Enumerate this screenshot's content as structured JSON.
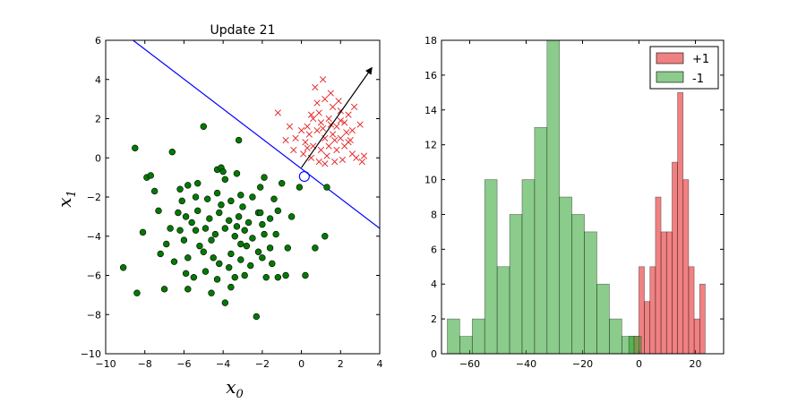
{
  "chart_data": [
    {
      "type": "scatter",
      "title": "Update 21",
      "xlabel": "x",
      "xlabel_sub": "0",
      "ylabel": "x",
      "ylabel_sub": "1",
      "xlim": [
        -10,
        4
      ],
      "ylim": [
        -10,
        6
      ],
      "xticks": [
        -10,
        -8,
        -6,
        -4,
        -2,
        0,
        2,
        4
      ],
      "yticks": [
        -10,
        -8,
        -6,
        -4,
        -2,
        0,
        2,
        4,
        6
      ],
      "grid": false,
      "colors": {
        "positive": "#e31a1c",
        "negative": "#007a00",
        "boundary": "#0000ff",
        "arrow": "#000000",
        "highlight": "#0000ff"
      },
      "decision_line": {
        "x": [
          -8.6,
          4.0
        ],
        "y": [
          6.0,
          -3.6
        ]
      },
      "weight_arrow": {
        "from": [
          0.0,
          -0.5
        ],
        "to": [
          3.6,
          4.6
        ]
      },
      "highlighted_point": [
        0.15,
        -0.95
      ],
      "series": [
        {
          "marker": "x",
          "points": [
            [
              0.5,
              2.2
            ],
            [
              0.8,
              2.8
            ],
            [
              1.2,
              3.0
            ],
            [
              1.6,
              2.6
            ],
            [
              2.0,
              2.4
            ],
            [
              2.4,
              2.2
            ],
            [
              1.0,
              1.8
            ],
            [
              1.4,
              2.0
            ],
            [
              1.8,
              1.6
            ],
            [
              2.2,
              1.8
            ],
            [
              2.6,
              1.4
            ],
            [
              0.4,
              1.2
            ],
            [
              0.8,
              1.4
            ],
            [
              1.2,
              1.0
            ],
            [
              1.6,
              1.2
            ],
            [
              2.0,
              1.0
            ],
            [
              2.4,
              0.8
            ],
            [
              0.2,
              0.8
            ],
            [
              0.6,
              0.6
            ],
            [
              1.0,
              0.4
            ],
            [
              1.4,
              0.6
            ],
            [
              1.8,
              0.4
            ],
            [
              2.2,
              0.6
            ],
            [
              2.6,
              0.2
            ],
            [
              0.1,
              0.2
            ],
            [
              0.5,
              0.0
            ],
            [
              0.9,
              -0.2
            ],
            [
              1.3,
              0.1
            ],
            [
              1.7,
              -0.2
            ],
            [
              2.1,
              -0.1
            ],
            [
              2.8,
              0.0
            ],
            [
              3.1,
              -0.2
            ],
            [
              0.7,
              3.6
            ],
            [
              1.1,
              4.0
            ],
            [
              1.5,
              3.3
            ],
            [
              2.7,
              2.6
            ],
            [
              3.0,
              1.7
            ],
            [
              -1.2,
              2.3
            ],
            [
              -0.6,
              1.6
            ],
            [
              -0.3,
              1.0
            ],
            [
              -0.8,
              0.9
            ],
            [
              -0.4,
              0.4
            ],
            [
              0.3,
              1.6
            ],
            [
              1.9,
              2.9
            ],
            [
              2.3,
              1.3
            ],
            [
              1.5,
              1.7
            ],
            [
              0.9,
              2.3
            ],
            [
              2.5,
              0.9
            ],
            [
              0.0,
              1.4
            ],
            [
              0.6,
              2.0
            ],
            [
              1.1,
              1.5
            ],
            [
              1.7,
              0.9
            ],
            [
              2.0,
              1.9
            ],
            [
              0.3,
              0.5
            ],
            [
              1.2,
              -0.3
            ],
            [
              3.2,
              0.1
            ]
          ]
        },
        {
          "marker": "o",
          "points": [
            [
              -8.5,
              0.5
            ],
            [
              -7.9,
              -1.0
            ],
            [
              -7.7,
              -0.9
            ],
            [
              -6.6,
              0.3
            ],
            [
              -5.0,
              1.6
            ],
            [
              -3.2,
              0.9
            ],
            [
              -4.3,
              -0.6
            ],
            [
              -4.1,
              -0.5
            ],
            [
              -3.3,
              -0.8
            ],
            [
              -1.9,
              -1.0
            ],
            [
              -0.1,
              -1.5
            ],
            [
              1.3,
              -1.5
            ],
            [
              -7.5,
              -1.7
            ],
            [
              -6.2,
              -1.6
            ],
            [
              -5.8,
              -1.4
            ],
            [
              -5.4,
              -2.0
            ],
            [
              -4.8,
              -2.1
            ],
            [
              -4.3,
              -1.8
            ],
            [
              -3.6,
              -2.2
            ],
            [
              -3.1,
              -1.9
            ],
            [
              -2.5,
              -2.0
            ],
            [
              -2.1,
              -1.5
            ],
            [
              -1.4,
              -2.1
            ],
            [
              -7.3,
              -2.7
            ],
            [
              -6.3,
              -2.8
            ],
            [
              -5.9,
              -3.0
            ],
            [
              -5.3,
              -2.7
            ],
            [
              -4.7,
              -3.1
            ],
            [
              -4.2,
              -2.8
            ],
            [
              -3.7,
              -3.2
            ],
            [
              -3.2,
              -3.0
            ],
            [
              -2.7,
              -3.3
            ],
            [
              -2.2,
              -2.8
            ],
            [
              -1.6,
              -3.1
            ],
            [
              -1.2,
              -2.7
            ],
            [
              -8.1,
              -3.8
            ],
            [
              -6.7,
              -3.6
            ],
            [
              -6.2,
              -3.7
            ],
            [
              -5.4,
              -3.7
            ],
            [
              -4.9,
              -3.6
            ],
            [
              -4.4,
              -3.9
            ],
            [
              -3.9,
              -3.6
            ],
            [
              -3.4,
              -4.0
            ],
            [
              -2.9,
              -3.7
            ],
            [
              -2.5,
              -4.1
            ],
            [
              -1.9,
              -3.9
            ],
            [
              -1.3,
              -3.9
            ],
            [
              -0.7,
              -4.6
            ],
            [
              1.2,
              -4.0
            ],
            [
              -7.2,
              -4.9
            ],
            [
              -6.5,
              -5.3
            ],
            [
              -5.8,
              -5.1
            ],
            [
              -5.0,
              -4.8
            ],
            [
              -4.5,
              -5.1
            ],
            [
              -4.2,
              -5.4
            ],
            [
              -3.6,
              -4.9
            ],
            [
              -3.1,
              -5.2
            ],
            [
              -2.6,
              -5.5
            ],
            [
              -2.0,
              -5.1
            ],
            [
              -1.5,
              -5.4
            ],
            [
              -9.1,
              -5.6
            ],
            [
              -5.9,
              -5.9
            ],
            [
              -5.5,
              -6.1
            ],
            [
              -4.9,
              -5.8
            ],
            [
              -4.3,
              -6.2
            ],
            [
              -3.4,
              -6.1
            ],
            [
              -2.9,
              -6.0
            ],
            [
              -1.8,
              -6.1
            ],
            [
              -0.8,
              -6.0
            ],
            [
              0.2,
              -6.0
            ],
            [
              -8.4,
              -6.9
            ],
            [
              -7.0,
              -6.7
            ],
            [
              -5.8,
              -6.7
            ],
            [
              -4.6,
              -6.9
            ],
            [
              -3.6,
              -6.6
            ],
            [
              -3.9,
              -7.4
            ],
            [
              -2.3,
              -8.1
            ],
            [
              -2.1,
              -2.8
            ],
            [
              -6.1,
              -2.2
            ],
            [
              -5.3,
              -1.3
            ],
            [
              -3.9,
              -1.1
            ],
            [
              -3.0,
              -2.5
            ],
            [
              -1.0,
              -1.3
            ],
            [
              -0.5,
              -3.0
            ],
            [
              -6.0,
              -4.2
            ],
            [
              -2.2,
              -4.8
            ],
            [
              -1.2,
              -6.1
            ],
            [
              0.7,
              -4.6
            ],
            [
              -4.1,
              -2.4
            ],
            [
              -5.6,
              -3.3
            ],
            [
              -3.3,
              -3.5
            ],
            [
              -2.0,
              -3.4
            ],
            [
              -4.0,
              -0.7
            ],
            [
              -5.2,
              -4.5
            ],
            [
              -2.8,
              -4.5
            ],
            [
              -1.6,
              -4.6
            ],
            [
              -4.6,
              -4.2
            ],
            [
              -3.1,
              -4.4
            ],
            [
              -6.9,
              -4.4
            ],
            [
              -3.7,
              -5.6
            ]
          ]
        }
      ]
    },
    {
      "type": "bar",
      "subtype": "histogram",
      "xlim": [
        -70,
        30
      ],
      "ylim": [
        0,
        18
      ],
      "xticks": [
        -60,
        -40,
        -20,
        0,
        20
      ],
      "yticks": [
        0,
        2,
        4,
        6,
        8,
        10,
        12,
        14,
        16,
        18
      ],
      "grid": false,
      "legend_placement": "top-right",
      "series": [
        {
          "name": "+1",
          "color": "#e31a1c",
          "bin_width": 1.96,
          "bins": [
            {
              "x0": -2.0,
              "value": 1
            },
            {
              "x0": -0.04,
              "value": 5
            },
            {
              "x0": 1.92,
              "value": 3
            },
            {
              "x0": 3.88,
              "value": 5
            },
            {
              "x0": 5.84,
              "value": 9
            },
            {
              "x0": 7.8,
              "value": 7
            },
            {
              "x0": 9.76,
              "value": 7
            },
            {
              "x0": 11.72,
              "value": 11
            },
            {
              "x0": 13.68,
              "value": 15
            },
            {
              "x0": 15.64,
              "value": 10
            },
            {
              "x0": 17.6,
              "value": 5
            },
            {
              "x0": 19.56,
              "value": 2
            },
            {
              "x0": 21.52,
              "value": 4
            }
          ]
        },
        {
          "name": "-1",
          "color": "#2ca02c",
          "bin_width": 4.42,
          "bins": [
            {
              "x0": -67.96,
              "value": 2
            },
            {
              "x0": -63.54,
              "value": 1
            },
            {
              "x0": -59.12,
              "value": 2
            },
            {
              "x0": -54.7,
              "value": 10
            },
            {
              "x0": -50.28,
              "value": 5
            },
            {
              "x0": -45.86,
              "value": 8
            },
            {
              "x0": -41.44,
              "value": 10
            },
            {
              "x0": -37.02,
              "value": 13
            },
            {
              "x0": -32.6,
              "value": 18
            },
            {
              "x0": -28.18,
              "value": 9
            },
            {
              "x0": -23.76,
              "value": 8
            },
            {
              "x0": -19.34,
              "value": 7
            },
            {
              "x0": -14.92,
              "value": 4
            },
            {
              "x0": -10.5,
              "value": 2
            },
            {
              "x0": -6.08,
              "value": 1
            },
            {
              "x0": -3.6,
              "value": 1
            }
          ]
        }
      ]
    }
  ]
}
